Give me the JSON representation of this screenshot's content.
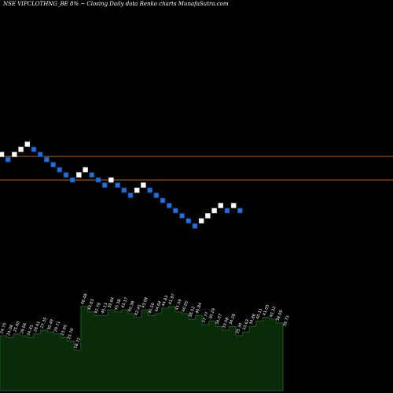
{
  "chart_data": {
    "type": "renko",
    "title": "NSE VIPCLOTHNG_BE 8% ~  Closing Daily data  Renko  charts MunafaSutra.com",
    "xlabel": "",
    "ylabel": "",
    "grid": false,
    "legend": "none",
    "brick_colors": {
      "up": "#ffffff",
      "down": "#1e6fe0"
    },
    "reference_line_color": "#b5651d",
    "volume_fill": "#0a2a0a",
    "volume_line": "#1c5c1c",
    "bricks": [
      "up",
      "down",
      "up",
      "up",
      "up",
      "down",
      "down",
      "down",
      "down",
      "down",
      "down",
      "down",
      "up",
      "up",
      "down",
      "down",
      "down",
      "up",
      "down",
      "down",
      "down",
      "up",
      "up",
      "down",
      "down",
      "down",
      "down",
      "down",
      "down",
      "down",
      "down",
      "up",
      "up",
      "up",
      "up",
      "down",
      "up",
      "down"
    ],
    "volume": [
      30.0,
      29.0,
      31.0,
      30.0,
      29.0,
      31.0,
      33.0,
      32.0,
      31.0,
      29.0,
      27.0,
      22.0,
      46.0,
      43.0,
      41.0,
      41.0,
      44.0,
      43.0,
      44.0,
      42.0,
      40.0,
      44.0,
      41.0,
      42.0,
      45.0,
      46.0,
      43.0,
      42.0,
      39.0,
      41.0,
      36.0,
      38.0,
      35.0,
      33.0,
      35.0,
      30.0,
      32.0,
      35.0,
      38.0,
      40.0,
      39.0,
      37.0,
      34.0
    ],
    "volume_labels": [
      "24.75",
      "24.08",
      "25.60",
      "26.66",
      "24.45",
      "28.61",
      "27.35",
      "30.49",
      "29.71",
      "23.90",
      "25.79",
      "18.72",
      "46.48",
      "40.63",
      "42.78",
      "40.13",
      "39.84",
      "45.38",
      "43.17",
      "40.38",
      "42.45",
      "43.08",
      "40.50",
      "44.64",
      "44.83",
      "41.97",
      "41.59",
      "40.05",
      "38.52",
      "40.84",
      "37.77",
      "36.29",
      "34.07",
      "33.08",
      "34.28",
      "35.30",
      "33.63",
      "34.86",
      "40.11",
      "41.05",
      "40.32",
      "38.99",
      "39.73"
    ]
  }
}
